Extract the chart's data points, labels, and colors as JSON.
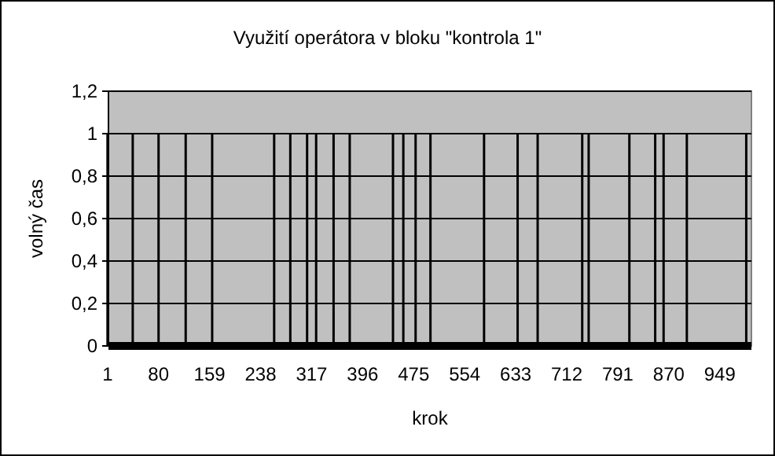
{
  "chart_data": {
    "type": "bar",
    "title": "Využití operátora v bloku \"kontrola 1\"",
    "xlabel": "krok",
    "ylabel": "volný čas",
    "x": [
      1,
      40,
      80,
      122,
      163,
      259,
      284,
      310,
      324,
      351,
      376,
      443,
      459,
      478,
      501,
      584,
      636,
      667,
      736,
      746,
      809,
      849,
      862,
      898,
      990
    ],
    "values": [
      1,
      1,
      1,
      1,
      1,
      1,
      1,
      1,
      1,
      1,
      1,
      1,
      1,
      1,
      1,
      1,
      1,
      1,
      1,
      1,
      1,
      1,
      1,
      1,
      1
    ],
    "color": "#000000",
    "xlim": [
      0,
      998
    ],
    "xticks": [
      1,
      80,
      159,
      238,
      317,
      396,
      475,
      554,
      633,
      712,
      791,
      870,
      949
    ],
    "ylim": [
      0,
      1.2
    ],
    "yticks": [
      0,
      {
        "value": 0.2,
        "label": "0,2"
      },
      {
        "value": 0.4,
        "label": "0,4"
      },
      {
        "value": 0.6,
        "label": "0,6"
      },
      {
        "value": 0.8,
        "label": "0,8"
      },
      1,
      {
        "value": 1.2,
        "label": "1,2"
      }
    ],
    "grid": "y"
  }
}
